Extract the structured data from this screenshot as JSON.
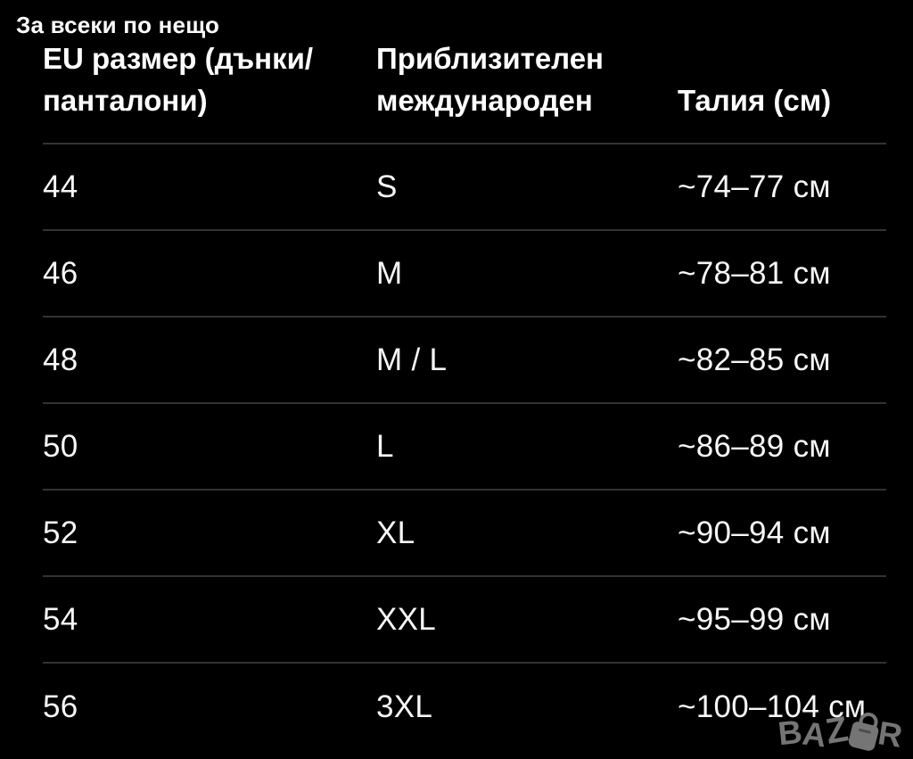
{
  "watermark": {
    "text": "За всеки по нещо"
  },
  "table": {
    "columns": [
      {
        "label": "EU размер (дънки/\nпанталони)"
      },
      {
        "label": "Приблизителен\nмеждународен"
      },
      {
        "label": "Талия (см)"
      }
    ],
    "rows": [
      {
        "eu": "44",
        "intl": "S",
        "waist": "~74–77 см"
      },
      {
        "eu": "46",
        "intl": "M",
        "waist": "~78–81 см"
      },
      {
        "eu": "48",
        "intl": "M / L",
        "waist": "~82–85 см"
      },
      {
        "eu": "50",
        "intl": "L",
        "waist": "~86–89 см"
      },
      {
        "eu": "52",
        "intl": "XL",
        "waist": "~90–94 см"
      },
      {
        "eu": "54",
        "intl": "XXL",
        "waist": "~95–99 см"
      },
      {
        "eu": "56",
        "intl": "3XL",
        "waist": "~100–104 см"
      }
    ]
  },
  "logo": {
    "name": "BAZAR",
    "letters": [
      "B",
      "A",
      "Z",
      "R"
    ]
  },
  "colors": {
    "background": "#000000",
    "text": "#ffffff",
    "divider": "#333336",
    "logo_gray": "#757575"
  }
}
